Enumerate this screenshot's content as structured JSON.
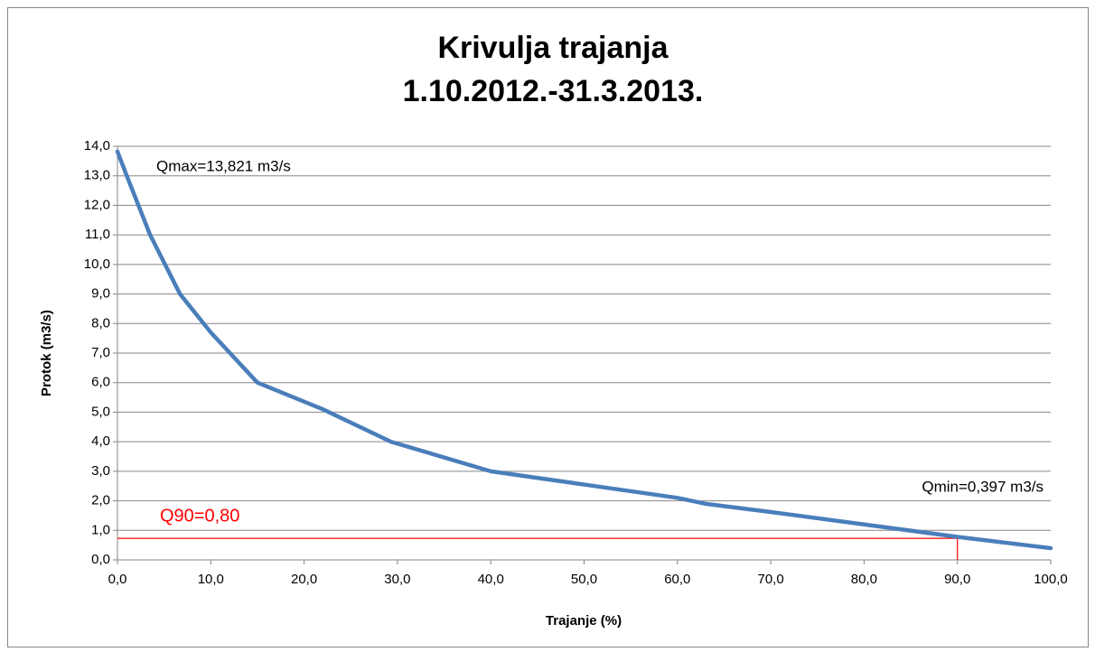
{
  "chart_data": {
    "type": "line",
    "title": "Krivulja trajanja",
    "subtitle": "1.10.2012.-31.3.2013.",
    "x_label": "Trajanje  (%)",
    "y_label": "Protok (m3/s)",
    "x": [
      0,
      1,
      3.5,
      6.7,
      10,
      15,
      22,
      29.3,
      40,
      50,
      60,
      63,
      70,
      80,
      90,
      100
    ],
    "series": [
      {
        "name": "Protok",
        "color": "#4a7ebb",
        "values": [
          13.821,
          13,
          11,
          9,
          7.7,
          6,
          5.1,
          4,
          3,
          2.55,
          2.1,
          1.9,
          1.62,
          1.2,
          0.78,
          0.397
        ]
      }
    ],
    "xlim": [
      0,
      100
    ],
    "ylim": [
      0,
      14
    ],
    "xticks": [
      {
        "value": 0,
        "label": "0,0"
      },
      {
        "value": 10,
        "label": "10,0"
      },
      {
        "value": 20,
        "label": "20,0"
      },
      {
        "value": 30,
        "label": "30,0"
      },
      {
        "value": 40,
        "label": "40,0"
      },
      {
        "value": 50,
        "label": "50,0"
      },
      {
        "value": 60,
        "label": "60,0"
      },
      {
        "value": 70,
        "label": "70,0"
      },
      {
        "value": 80,
        "label": "80,0"
      },
      {
        "value": 90,
        "label": "90,0"
      },
      {
        "value": 100,
        "label": "100,0"
      }
    ],
    "yticks": [
      {
        "value": 0,
        "label": "0,0"
      },
      {
        "value": 1,
        "label": "1,0"
      },
      {
        "value": 2,
        "label": "2,0"
      },
      {
        "value": 3,
        "label": "3,0"
      },
      {
        "value": 4,
        "label": "4,0"
      },
      {
        "value": 5,
        "label": "5,0"
      },
      {
        "value": 6,
        "label": "6,0"
      },
      {
        "value": 7,
        "label": "7,0"
      },
      {
        "value": 8,
        "label": "8,0"
      },
      {
        "value": 9,
        "label": "9,0"
      },
      {
        "value": 10,
        "label": "10,0"
      },
      {
        "value": 11,
        "label": "11,0"
      },
      {
        "value": 12,
        "label": "12,0"
      },
      {
        "value": 13,
        "label": "13,0"
      },
      {
        "value": 14,
        "label": "14,0"
      }
    ],
    "grid": true,
    "annotations": [
      "Qmax=13,821 m3/s",
      "Qmin=0,397 m3/s"
    ],
    "reference": {
      "label": "Q90=0,80",
      "x": 90,
      "y": 0.73,
      "color": "#ff0000"
    }
  }
}
